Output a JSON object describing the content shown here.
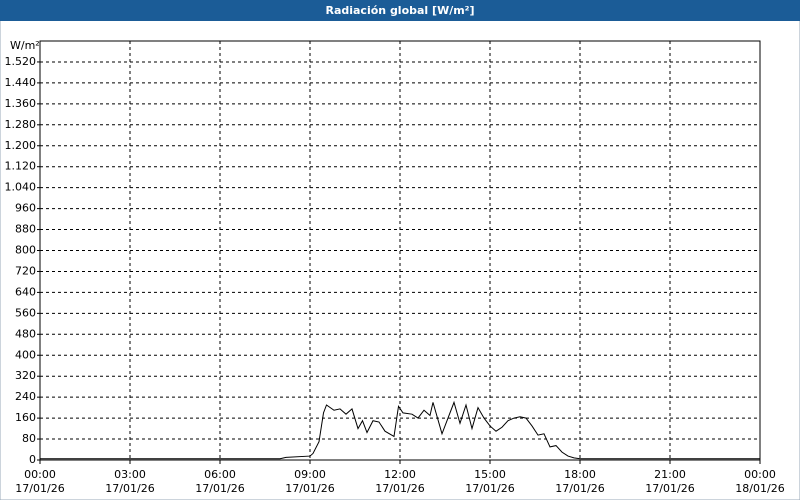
{
  "chart_data": {
    "type": "line",
    "title": "Radiación global [W/m²]",
    "y_label": "W/m²",
    "x": [
      0,
      8,
      8.2,
      9.0,
      9.1,
      9.3,
      9.45,
      9.55,
      9.8,
      10.0,
      10.2,
      10.4,
      10.6,
      10.75,
      10.9,
      11.1,
      11.3,
      11.5,
      11.8,
      11.95,
      12.1,
      12.4,
      12.6,
      12.8,
      13.0,
      13.1,
      13.4,
      13.6,
      13.8,
      14.0,
      14.2,
      14.4,
      14.6,
      14.8,
      15.0,
      15.2,
      15.4,
      15.6,
      15.8,
      16.0,
      16.2,
      16.4,
      16.6,
      16.8,
      17.0,
      17.2,
      17.4,
      17.6,
      17.8,
      18,
      24
    ],
    "series": [
      {
        "name": "Radiación global",
        "color": "#000000",
        "values": [
          5,
          5,
          10,
          15,
          25,
          70,
          180,
          210,
          190,
          195,
          175,
          195,
          120,
          150,
          105,
          150,
          145,
          110,
          90,
          205,
          180,
          175,
          160,
          190,
          170,
          220,
          100,
          160,
          220,
          140,
          210,
          120,
          200,
          160,
          130,
          110,
          125,
          150,
          160,
          165,
          160,
          130,
          95,
          100,
          50,
          55,
          30,
          15,
          8,
          5,
          5
        ]
      }
    ],
    "xlim": [
      0,
      24
    ],
    "xticks": [
      {
        "value": 0,
        "label": [
          "00:00",
          "17/01/26"
        ]
      },
      {
        "value": 3,
        "label": [
          "03:00",
          "17/01/26"
        ]
      },
      {
        "value": 6,
        "label": [
          "06:00",
          "17/01/26"
        ]
      },
      {
        "value": 9,
        "label": [
          "09:00",
          "17/01/26"
        ]
      },
      {
        "value": 12,
        "label": [
          "12:00",
          "17/01/26"
        ]
      },
      {
        "value": 15,
        "label": [
          "15:00",
          "17/01/26"
        ]
      },
      {
        "value": 18,
        "label": [
          "18:00",
          "17/01/26"
        ]
      },
      {
        "value": 21,
        "label": [
          "21:00",
          "17/01/26"
        ]
      },
      {
        "value": 24,
        "label": [
          "00:00",
          "18/01/26"
        ]
      }
    ],
    "ylim": [
      0,
      1600
    ],
    "yticks": [
      0,
      80,
      160,
      240,
      320,
      400,
      480,
      560,
      640,
      720,
      800,
      880,
      960,
      {
        "value": 1040,
        "label": "1.040"
      },
      {
        "value": 1120,
        "label": "1.120"
      },
      {
        "value": 1200,
        "label": "1.200"
      },
      {
        "value": 1280,
        "label": "1.280"
      },
      {
        "value": 1360,
        "label": "1.360"
      },
      {
        "value": 1440,
        "label": "1.440"
      },
      {
        "value": 1520,
        "label": "1.520"
      }
    ],
    "grid": true
  }
}
